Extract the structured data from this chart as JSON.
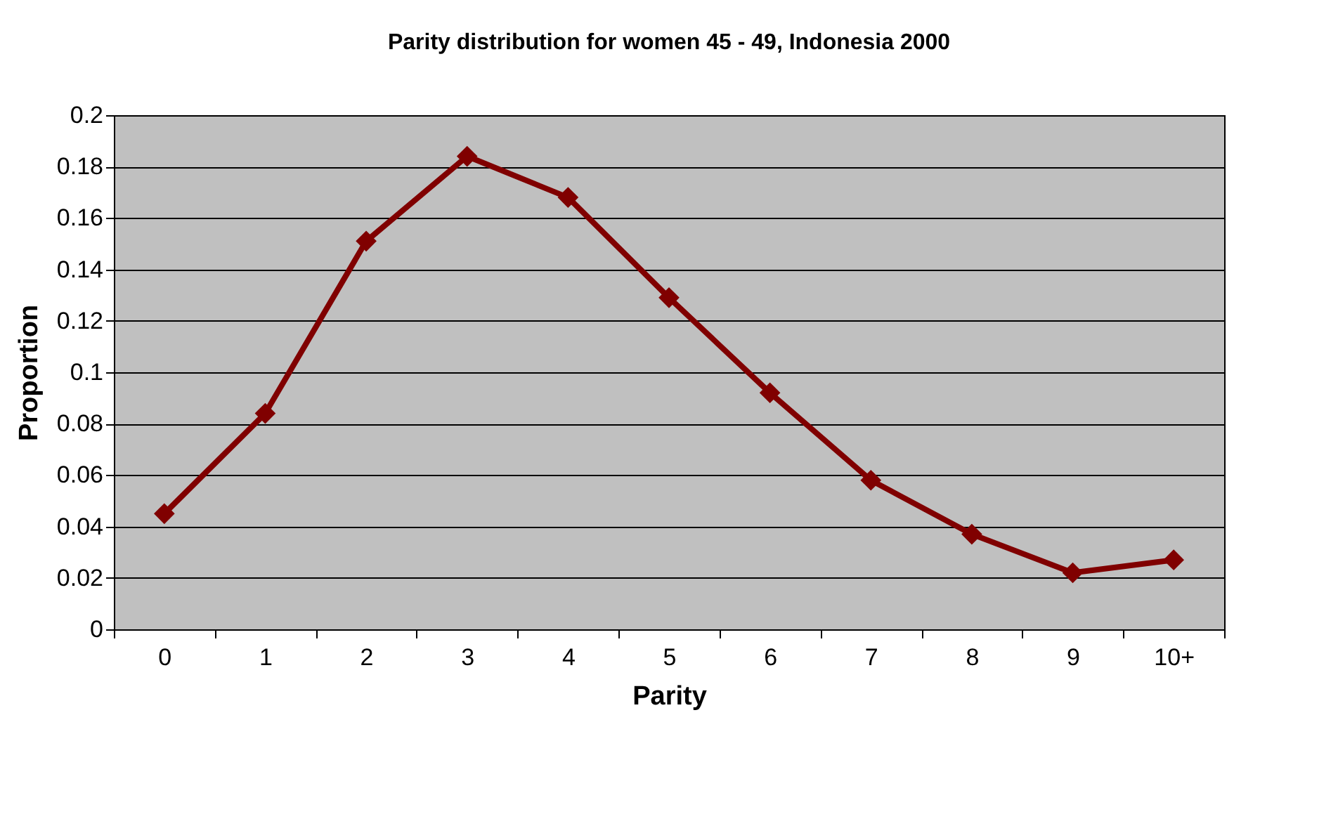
{
  "chart_data": {
    "type": "line",
    "title": "Parity distribution for women 45 - 49, Indonesia 2000",
    "xlabel": "Parity",
    "ylabel": "Proportion",
    "categories": [
      "0",
      "1",
      "2",
      "3",
      "4",
      "5",
      "6",
      "7",
      "8",
      "9",
      "10+"
    ],
    "series": [
      {
        "color": "#800000",
        "values": [
          0.045,
          0.084,
          0.151,
          0.184,
          0.168,
          0.129,
          0.092,
          0.058,
          0.037,
          0.022,
          0.027
        ]
      }
    ],
    "ylim": [
      0,
      0.2
    ],
    "yticks": [
      0,
      0.02,
      0.04,
      0.06,
      0.08,
      0.1,
      0.12,
      0.14,
      0.16,
      0.18,
      0.2
    ],
    "grid": "y",
    "marker": "diamond",
    "line_style": "solid"
  }
}
